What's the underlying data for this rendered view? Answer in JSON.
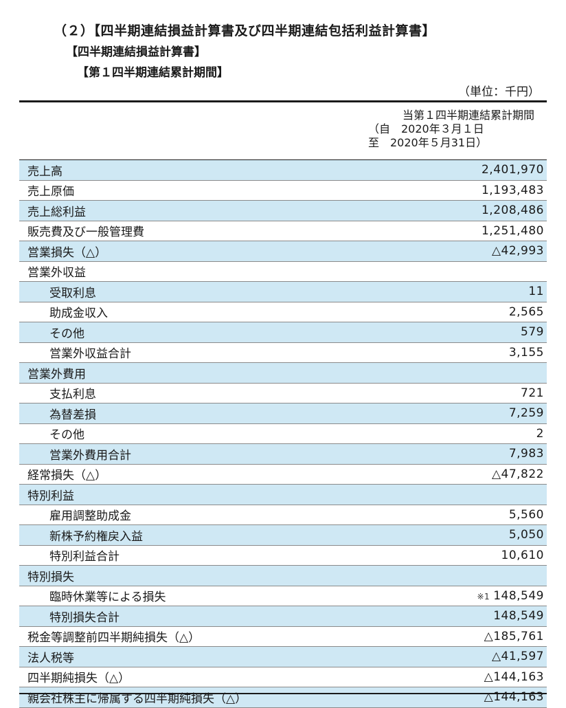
{
  "headings": {
    "main": "（２）【四半期連結損益計算書及び四半期連結包括利益計算書】",
    "sub": "【四半期連結損益計算書】",
    "period": "【第１四半期連結累計期間】",
    "unit": "（単位：千円）"
  },
  "column_header": {
    "line1": "当第１四半期連結累計期間",
    "line2": "（自　2020年３月１日",
    "line3": "至　2020年５月31日）"
  },
  "rows": [
    {
      "label": "売上高",
      "value": "2,401,970",
      "shade": true,
      "indent": false
    },
    {
      "label": "売上原価",
      "value": "1,193,483",
      "shade": false,
      "indent": false
    },
    {
      "label": "売上総利益",
      "value": "1,208,486",
      "shade": true,
      "indent": false,
      "total": true
    },
    {
      "label": "販売費及び一般管理費",
      "value": "1,251,480",
      "shade": false,
      "indent": false
    },
    {
      "label": "営業損失（△）",
      "value": "△42,993",
      "shade": true,
      "indent": false,
      "total": true
    },
    {
      "label": "営業外収益",
      "value": "",
      "shade": false,
      "indent": false
    },
    {
      "label": "受取利息",
      "value": "11",
      "shade": true,
      "indent": true
    },
    {
      "label": "助成金収入",
      "value": "2,565",
      "shade": false,
      "indent": true
    },
    {
      "label": "その他",
      "value": "579",
      "shade": true,
      "indent": true
    },
    {
      "label": "営業外収益合計",
      "value": "3,155",
      "shade": false,
      "indent": true,
      "total": true
    },
    {
      "label": "営業外費用",
      "value": "",
      "shade": true,
      "indent": false
    },
    {
      "label": "支払利息",
      "value": "721",
      "shade": false,
      "indent": true
    },
    {
      "label": "為替差損",
      "value": "7,259",
      "shade": true,
      "indent": true
    },
    {
      "label": "その他",
      "value": "2",
      "shade": false,
      "indent": true
    },
    {
      "label": "営業外費用合計",
      "value": "7,983",
      "shade": true,
      "indent": true,
      "total": true
    },
    {
      "label": "経常損失（△）",
      "value": "△47,822",
      "shade": false,
      "indent": false,
      "total": true
    },
    {
      "label": "特別利益",
      "value": "",
      "shade": true,
      "indent": false
    },
    {
      "label": "雇用調整助成金",
      "value": "5,560",
      "shade": false,
      "indent": true
    },
    {
      "label": "新株予約権戻入益",
      "value": "5,050",
      "shade": true,
      "indent": true
    },
    {
      "label": "特別利益合計",
      "value": "10,610",
      "shade": false,
      "indent": true,
      "total": true
    },
    {
      "label": "特別損失",
      "value": "",
      "shade": true,
      "indent": false
    },
    {
      "label": "臨時休業等による損失",
      "value": "148,549",
      "note": "※1",
      "shade": false,
      "indent": true
    },
    {
      "label": "特別損失合計",
      "value": "148,549",
      "shade": true,
      "indent": true,
      "total": true
    },
    {
      "label": "税金等調整前四半期純損失（△）",
      "value": "△185,761",
      "shade": false,
      "indent": false,
      "total": true
    },
    {
      "label": "法人税等",
      "value": "△41,597",
      "shade": true,
      "indent": false
    },
    {
      "label": "四半期純損失（△）",
      "value": "△144,163",
      "shade": false,
      "indent": false,
      "total": true
    },
    {
      "label": "親会社株主に帰属する四半期純損失（△）",
      "value": "△144,163",
      "shade": true,
      "indent": false
    }
  ]
}
